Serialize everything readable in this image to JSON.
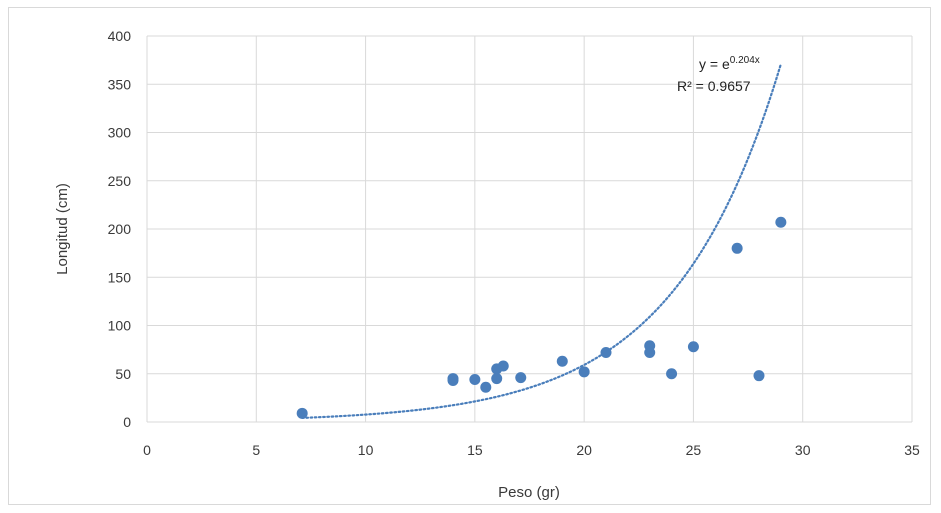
{
  "chart_data": {
    "type": "scatter",
    "xlabel": "Peso (gr)",
    "ylabel": "Longitud (cm)",
    "xlim": [
      0,
      35
    ],
    "ylim": [
      0,
      400
    ],
    "x_ticks": [
      0,
      5,
      10,
      15,
      20,
      25,
      30,
      35
    ],
    "y_ticks": [
      0,
      50,
      100,
      150,
      200,
      250,
      300,
      350,
      400
    ],
    "grid": true,
    "marker_color": "#4a7ebb",
    "trendline_color": "#4a7ebb",
    "series": [
      {
        "x": [
          7.1,
          14,
          14,
          15,
          15.5,
          16,
          16,
          16.3,
          17.1,
          19,
          20,
          21,
          23,
          23,
          24,
          25,
          27,
          28,
          29
        ],
        "y": [
          9,
          45,
          43,
          44,
          36,
          55,
          45,
          58,
          46,
          63,
          52,
          72,
          79,
          72,
          50,
          78,
          180,
          48,
          207
        ]
      }
    ],
    "trendline": {
      "type": "exponential",
      "coefficient": 0.204,
      "x_range": [
        7.1,
        29
      ],
      "equation_prefix": "y = e",
      "equation_exponent": "0.204x",
      "r_squared_text": "R² = 0.9657"
    }
  }
}
